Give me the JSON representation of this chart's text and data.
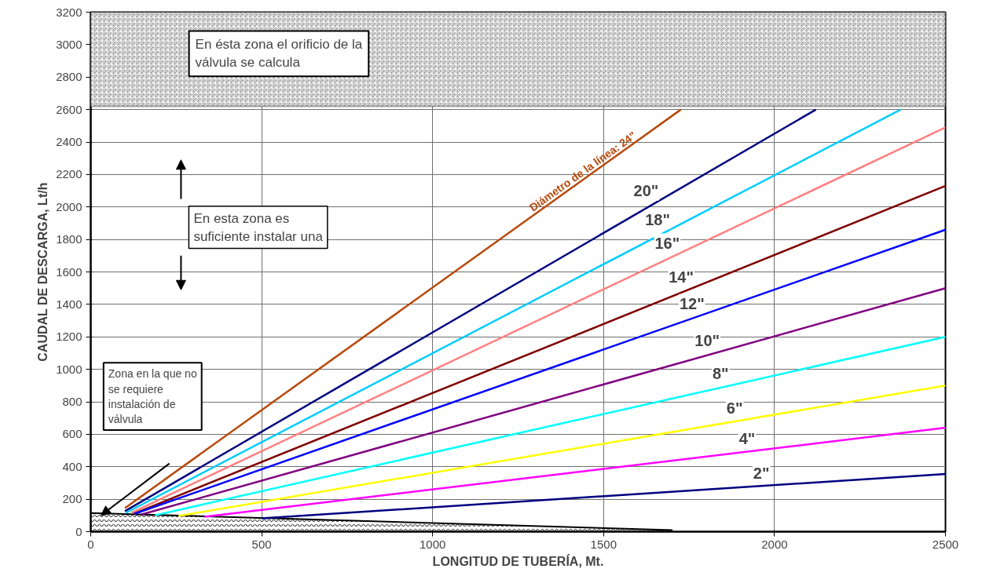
{
  "chart_data": {
    "type": "line",
    "xlabel": "LONGITUD DE TUBERÍA, Mt.",
    "ylabel": "CAUDAL DE DESCARGA, Lt/h",
    "xlim": [
      0,
      2500
    ],
    "ylim": [
      0,
      3200
    ],
    "xticks": [
      0,
      500,
      1000,
      1500,
      2000,
      2500
    ],
    "yticks": [
      0,
      200,
      400,
      600,
      800,
      1000,
      1200,
      1400,
      1600,
      1800,
      2000,
      2200,
      2400,
      2600,
      2800,
      3000,
      3200
    ],
    "grid": true,
    "legend": false,
    "marker": "none",
    "line_style": "solid",
    "series": [
      {
        "name": "Diámetro de la línea: 24\"",
        "color": "#b84a0c",
        "x": [
          100,
          1726
        ],
        "values": [
          145,
          2600
        ]
      },
      {
        "name": "20\"",
        "color": "#000080",
        "x": [
          100,
          2121
        ],
        "values": [
          126,
          2600
        ]
      },
      {
        "name": "18\"",
        "color": "#00ccff",
        "x": [
          103,
          2369
        ],
        "values": [
          116,
          2600
        ]
      },
      {
        "name": "16\"",
        "color": "#ff8080",
        "x": [
          119,
          2500
        ],
        "values": [
          116,
          2490
        ]
      },
      {
        "name": "14\"",
        "color": "#800000",
        "x": [
          126,
          2500
        ],
        "values": [
          111,
          2130
        ]
      },
      {
        "name": "12\"",
        "color": "#0000ff",
        "x": [
          128,
          2500
        ],
        "values": [
          110,
          1860
        ]
      },
      {
        "name": "10\"",
        "color": "#800080",
        "x": [
          149,
          2500
        ],
        "values": [
          106,
          1500
        ]
      },
      {
        "name": "8\"",
        "color": "#00ffff",
        "x": [
          188,
          2500
        ],
        "values": [
          101,
          1200
        ]
      },
      {
        "name": "6\"",
        "color": "#ffff00",
        "x": [
          257,
          2500
        ],
        "values": [
          97,
          900
        ]
      },
      {
        "name": "4\"",
        "color": "#ff00ff",
        "x": [
          333,
          2500
        ],
        "values": [
          92,
          640
        ]
      },
      {
        "name": "2\"",
        "color": "#000080",
        "x": [
          500,
          2500
        ],
        "values": [
          82,
          355
        ]
      },
      {
        "type": "area",
        "color": "#000000",
        "x": [
          0,
          1700
        ],
        "values": [
          115,
          10
        ]
      }
    ],
    "bands": [
      {
        "axis": "y",
        "from": 2620,
        "to": 3200,
        "color": "#a0a0a0",
        "label": "En ésta zona el orificio de la válvula se calcula"
      }
    ],
    "annotations": [
      "En esta zona es suficiente instalar una",
      "Zona en la que no se requiere instalación de válvula"
    ]
  }
}
